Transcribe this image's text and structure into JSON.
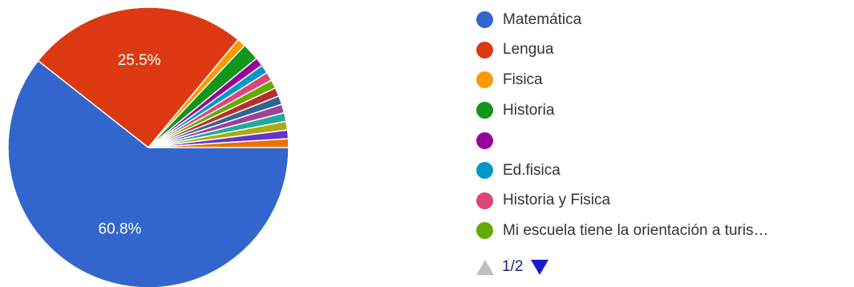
{
  "chart_data": {
    "type": "pie",
    "legend_position": "right",
    "slices": [
      {
        "label": "Matemática",
        "value": 60.8,
        "color": "#3366cc",
        "data_label": "60.8%"
      },
      {
        "label": "Lengua",
        "value": 25.5,
        "color": "#dc3912",
        "data_label": "25.5%"
      },
      {
        "label": "Fisica",
        "value": 1.0,
        "color": "#ff9900"
      },
      {
        "label": "Historia",
        "value": 2.0,
        "color": "#109618"
      },
      {
        "label": "",
        "value": 1.0,
        "color": "#990099"
      },
      {
        "label": "Ed.fisica",
        "value": 1.0,
        "color": "#0099c6"
      },
      {
        "label": "Historia y Fisica",
        "value": 1.0,
        "color": "#dd4477"
      },
      {
        "label": "Mi escuela tiene la orientación a turis…",
        "value": 1.0,
        "color": "#66aa00"
      },
      {
        "label": "",
        "value": 1.0,
        "color": "#b82e2e"
      },
      {
        "label": "",
        "value": 1.0,
        "color": "#316395"
      },
      {
        "label": "",
        "value": 1.0,
        "color": "#994499"
      },
      {
        "label": "",
        "value": 1.0,
        "color": "#22aa99"
      },
      {
        "label": "",
        "value": 1.0,
        "color": "#aaaa11"
      },
      {
        "label": "",
        "value": 1.0,
        "color": "#6633cc"
      },
      {
        "label": "",
        "value": 1.0,
        "color": "#e67300"
      }
    ]
  },
  "legend": {
    "items": [
      {
        "label": "Matemática",
        "color": "#3366cc"
      },
      {
        "label": "Lengua",
        "color": "#dc3912"
      },
      {
        "label": "Fisica",
        "color": "#ff9900"
      },
      {
        "label": "Historia",
        "color": "#109618"
      },
      {
        "label": "",
        "color": "#990099"
      },
      {
        "label": "Ed.fisica",
        "color": "#0099c6"
      },
      {
        "label": "Historia y Fisica",
        "color": "#dd4477"
      },
      {
        "label": "Mi escuela tiene la orientación a turis…",
        "color": "#66aa00"
      }
    ]
  },
  "pager": {
    "text": "1/2",
    "prev_icon": "triangle-up-icon",
    "next_icon": "triangle-down-icon"
  }
}
